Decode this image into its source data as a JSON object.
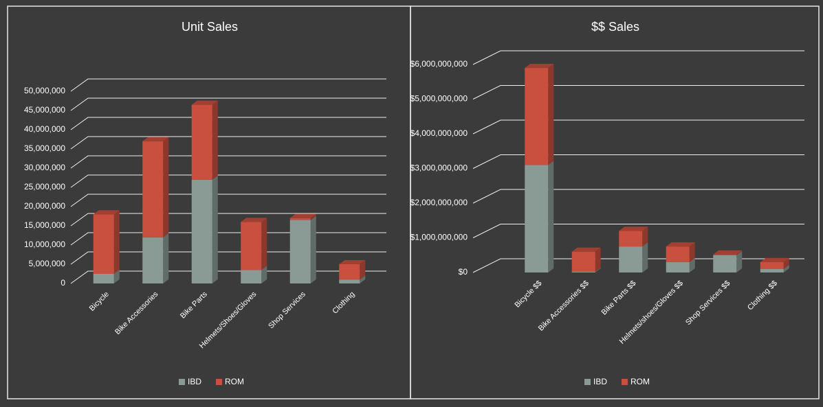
{
  "chart_data": [
    {
      "type": "bar3d",
      "title": "Unit Sales",
      "stacked": true,
      "categories": [
        "Bicycle",
        "Bike Accessories",
        "Bike Parts",
        "Helmets/Shoes/Gloves",
        "Shop Services",
        "Clothing"
      ],
      "series": [
        {
          "name": "IBD",
          "color": "#8a9a94",
          "values": [
            2500000,
            12000000,
            27000000,
            3500000,
            16500000,
            1000000
          ]
        },
        {
          "name": "ROM",
          "color": "#c9503f",
          "values": [
            15500000,
            25000000,
            19500000,
            12500000,
            500000,
            4000000
          ]
        }
      ],
      "ylim": [
        0,
        50000000
      ],
      "yticks": [
        0,
        {
          "value": 5000000,
          "label": "5,000,000"
        },
        {
          "value": 10000000,
          "label": "10,000,000"
        },
        {
          "value": 15000000,
          "label": "15,000,000"
        },
        {
          "value": 20000000,
          "label": "20,000,000"
        },
        {
          "value": 25000000,
          "label": "25,000,000"
        },
        {
          "value": 30000000,
          "label": "30,000,000"
        },
        {
          "value": 35000000,
          "label": "35,000,000"
        },
        {
          "value": 40000000,
          "label": "40,000,000"
        },
        {
          "value": 45000000,
          "label": "45,000,000"
        },
        {
          "value": 50000000,
          "label": "50,000,000"
        }
      ],
      "grid": true,
      "legend": "bottom"
    },
    {
      "type": "bar3d",
      "title": "$$ Sales",
      "stacked": true,
      "categories": [
        "Bicycle $$",
        "Bike Accessories $$",
        "Bike Parts $$",
        "Helmets/shoes/Gloves $$",
        "Shop Services $$",
        "Clothing $$"
      ],
      "series": [
        {
          "name": "IBD",
          "color": "#8a9a94",
          "values": [
            3100000000,
            20000000,
            750000000,
            300000000,
            500000000,
            100000000
          ]
        },
        {
          "name": "ROM",
          "color": "#c9503f",
          "values": [
            2800000000,
            580000000,
            450000000,
            450000000,
            20000000,
            200000000
          ]
        }
      ],
      "ylim": [
        0,
        6000000000
      ],
      "yticks": [
        {
          "value": 0,
          "label": "$0"
        },
        {
          "value": 1000000000,
          "label": "$1,000,000,000"
        },
        {
          "value": 2000000000,
          "label": "$2,000,000,000"
        },
        {
          "value": 3000000000,
          "label": "$3,000,000,000"
        },
        {
          "value": 4000000000,
          "label": "$4,000,000,000"
        },
        {
          "value": 5000000000,
          "label": "$5,000,000,000"
        },
        {
          "value": 6000000000,
          "label": "$6,000,000,000"
        }
      ],
      "grid": true,
      "legend": "bottom"
    }
  ]
}
